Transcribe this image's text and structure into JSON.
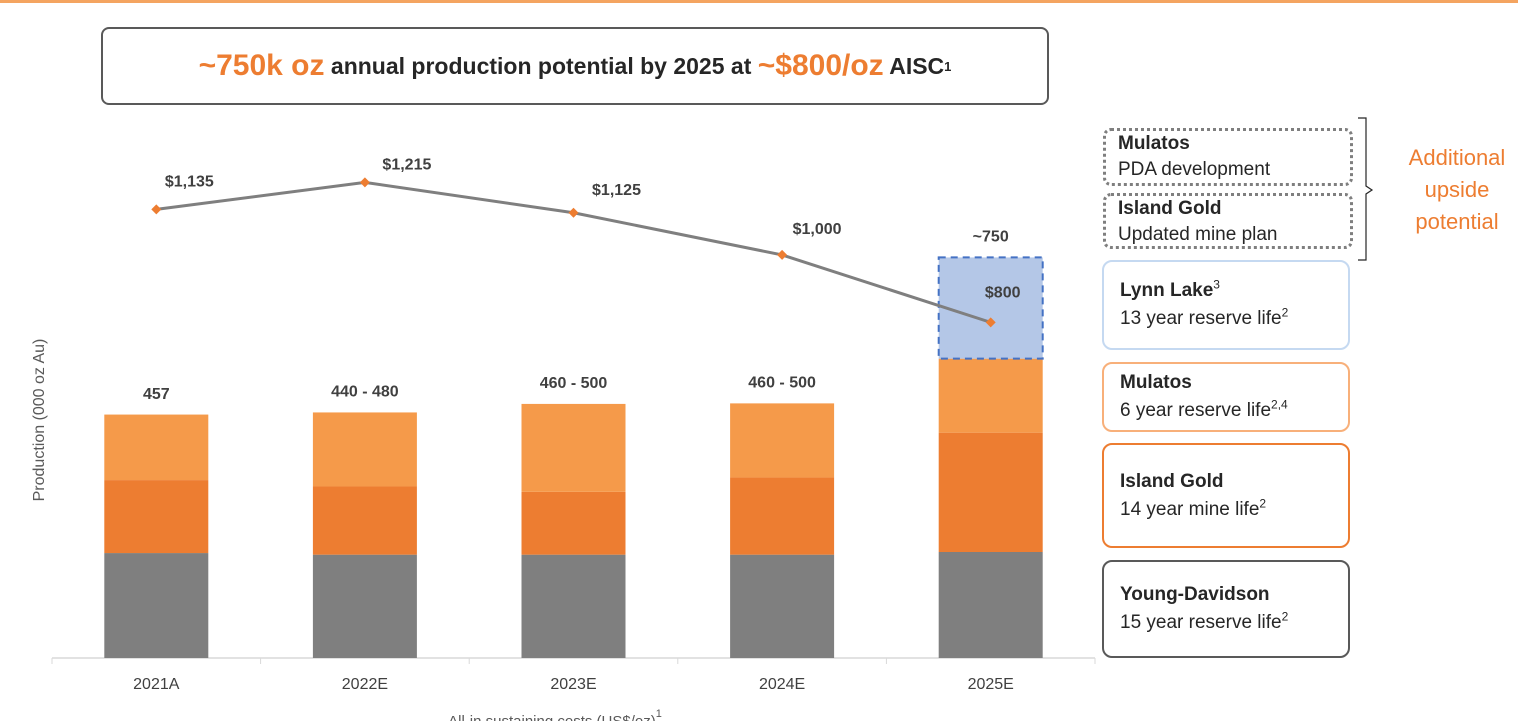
{
  "header": {
    "parts": [
      "~750k oz",
      " annual production potential by 2025 at ",
      "~$800/oz",
      " AISC"
    ],
    "sup": "1"
  },
  "chart_data": {
    "type": "bar",
    "stacked": true,
    "y_label": "Production (000 oz Au)",
    "categories": [
      "2021A",
      "2022E",
      "2023E",
      "2024E",
      "2025E"
    ],
    "ylim": [
      0,
      1010
    ],
    "series": [
      {
        "name": "Young-Davidson",
        "color": "#7f7f7f",
        "values": [
          197,
          194,
          194,
          194,
          199
        ],
        "note": "15 year reserve life",
        "note_sup": "2"
      },
      {
        "name": "Island Gold",
        "color": "#ed7d31",
        "values": [
          137,
          128,
          118,
          145,
          224
        ],
        "note": "14 year mine life",
        "note_sup": "2"
      },
      {
        "name": "Mulatos",
        "color": "#f59a4a",
        "values": [
          123,
          139,
          165,
          139,
          139
        ],
        "note": "6 year reserve life",
        "note_sup": "2,4"
      },
      {
        "name": "Lynn Lake",
        "name_sup": "3",
        "color": "#b4c7e7",
        "values": [
          null,
          null,
          null,
          null,
          190
        ],
        "note": "13 year reserve life",
        "note_sup": "2"
      }
    ],
    "total_labels": [
      "457",
      "440 - 480",
      "460 - 500",
      "460 - 500",
      "~750"
    ],
    "line": {
      "axis": "y2",
      "color": "#7f7f7f",
      "marker_color": "#ed7d31",
      "values": [
        1135,
        1215,
        1125,
        1000,
        800
      ],
      "value_labels": [
        "$1,135",
        "$1,215",
        "$1,125",
        "$1,000",
        "$800"
      ]
    },
    "y2lim": [
      -195,
      1400
    ],
    "y2_label": "All-in sustaining costs (US$/oz)",
    "y2_label_sup": "1"
  },
  "upside": {
    "items": [
      {
        "name": "Mulatos",
        "desc": "PDA development"
      },
      {
        "name": "Island Gold",
        "desc": "Updated mine plan"
      }
    ],
    "label": "Additional upside potential"
  }
}
